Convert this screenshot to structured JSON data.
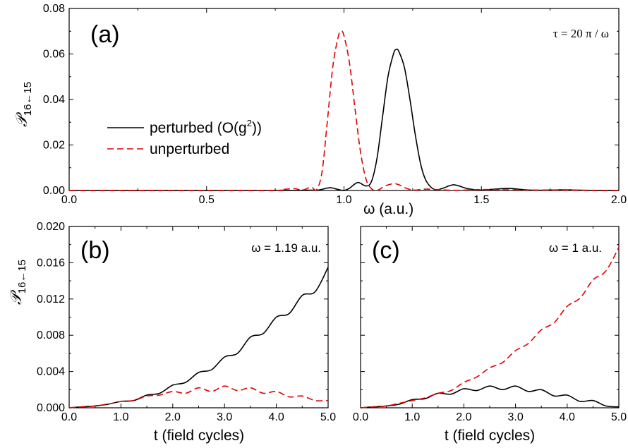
{
  "colors": {
    "perturbed": "#000000",
    "unperturbed": "#e00000"
  },
  "legend": {
    "perturbed": "perturbed (O(g",
    "perturbed_sup": "2",
    "perturbed_end": "))",
    "unperturbed": "unperturbed"
  },
  "chart_data": [
    {
      "panel": "(a)",
      "type": "line",
      "annotation": "τ = 20 π / ω",
      "xlabel": "ω (a.u.)",
      "ylabel": "𝒫",
      "ylabel_sub": "16←15",
      "xlim": [
        0.0,
        2.0
      ],
      "ylim": [
        0.0,
        0.08
      ],
      "xticks": [
        "0.0",
        "0.5",
        "1.0",
        "1.5",
        "2.0"
      ],
      "yticks": [
        "0.00",
        "0.02",
        "0.04",
        "0.06",
        "0.08"
      ],
      "legend_position": "center-left",
      "series": [
        {
          "name": "perturbed (O(g²))",
          "style": "solid",
          "x": [
            0.0,
            0.8,
            0.85,
            0.9,
            0.92,
            0.95,
            0.98,
            1.0,
            1.02,
            1.05,
            1.08,
            1.1,
            1.12,
            1.14,
            1.16,
            1.18,
            1.19,
            1.2,
            1.22,
            1.24,
            1.26,
            1.28,
            1.3,
            1.33,
            1.36,
            1.4,
            1.45,
            1.5,
            1.55,
            1.6,
            1.65,
            1.7,
            1.8,
            1.9,
            2.0
          ],
          "y": [
            0.0,
            0.0,
            0.0002,
            0.0001,
            0.0005,
            0.0012,
            0.0004,
            0.0,
            0.001,
            0.0035,
            0.002,
            0.004,
            0.014,
            0.032,
            0.05,
            0.06,
            0.062,
            0.061,
            0.054,
            0.04,
            0.024,
            0.011,
            0.004,
            0.0004,
            0.001,
            0.0025,
            0.0008,
            0.0002,
            0.0006,
            0.0009,
            0.0004,
            0.0001,
            0.0003,
            0.0,
            0.0
          ]
        },
        {
          "name": "unperturbed",
          "style": "dashed",
          "x": [
            0.0,
            0.7,
            0.78,
            0.82,
            0.85,
            0.88,
            0.9,
            0.92,
            0.94,
            0.96,
            0.98,
            0.99,
            1.0,
            1.02,
            1.04,
            1.06,
            1.08,
            1.1,
            1.12,
            1.15,
            1.18,
            1.2,
            1.23,
            1.26,
            1.3,
            1.4,
            1.5,
            1.6,
            1.7,
            1.8,
            2.0
          ],
          "y": [
            0.0,
            0.0,
            0.0005,
            0.0008,
            0.0002,
            0.0015,
            0.0004,
            0.008,
            0.031,
            0.055,
            0.068,
            0.07,
            0.068,
            0.056,
            0.036,
            0.017,
            0.005,
            0.0008,
            0.0,
            0.002,
            0.003,
            0.0025,
            0.0008,
            0.0002,
            0.0006,
            0.0001,
            0.0004,
            0.0003,
            0.0002,
            0.0002,
            0.0
          ]
        }
      ]
    },
    {
      "panel": "(b)",
      "type": "line",
      "annotation": "ω = 1.19 a.u.",
      "xlabel": "t (field cycles)",
      "ylabel": "𝒫",
      "ylabel_sub": "16←15",
      "xlim": [
        0.0,
        5.0
      ],
      "ylim": [
        0.0,
        0.02
      ],
      "xticks": [
        "0.0",
        "1.0",
        "2.0",
        "3.0",
        "4.0",
        "5.0"
      ],
      "yticks": [
        "0.000",
        "0.004",
        "0.008",
        "0.012",
        "0.016",
        "0.020"
      ],
      "series": [
        {
          "name": "perturbed (O(g²))",
          "style": "solid",
          "x": [
            0.0,
            0.25,
            0.5,
            0.75,
            1.0,
            1.25,
            1.5,
            1.75,
            2.0,
            2.25,
            2.5,
            2.75,
            3.0,
            3.25,
            3.5,
            3.75,
            4.0,
            4.25,
            4.5,
            4.75,
            5.0
          ],
          "y": [
            0.0,
            0.0001,
            0.0002,
            0.0004,
            0.0007,
            0.0008,
            0.0014,
            0.0016,
            0.0025,
            0.0028,
            0.0039,
            0.0042,
            0.0056,
            0.006,
            0.0078,
            0.0082,
            0.01,
            0.0104,
            0.0124,
            0.0128,
            0.0155
          ]
        },
        {
          "name": "unperturbed",
          "style": "dashed",
          "x": [
            0.0,
            0.25,
            0.5,
            0.75,
            1.0,
            1.25,
            1.5,
            1.75,
            2.0,
            2.25,
            2.5,
            2.75,
            3.0,
            3.25,
            3.5,
            3.75,
            4.0,
            4.25,
            4.5,
            4.75,
            5.0
          ],
          "y": [
            0.0,
            0.0001,
            0.0002,
            0.0004,
            0.0007,
            0.0008,
            0.0013,
            0.0014,
            0.0018,
            0.0016,
            0.0022,
            0.0018,
            0.0024,
            0.0019,
            0.0022,
            0.0016,
            0.0018,
            0.0012,
            0.0013,
            0.0008,
            0.0008
          ]
        }
      ]
    },
    {
      "panel": "(c)",
      "type": "line",
      "annotation": "ω = 1 a.u.",
      "xlabel": "t (field cycles)",
      "xlim": [
        0.0,
        5.0
      ],
      "ylim": [
        0.0,
        0.02
      ],
      "xticks": [
        "0.0",
        "1.0",
        "2.0",
        "3.0",
        "4.0",
        "5.0"
      ],
      "series": [
        {
          "name": "perturbed (O(g²))",
          "style": "solid",
          "x": [
            0.0,
            0.25,
            0.5,
            0.75,
            1.0,
            1.25,
            1.5,
            1.75,
            2.0,
            2.25,
            2.5,
            2.75,
            3.0,
            3.25,
            3.5,
            3.75,
            4.0,
            4.25,
            4.5,
            4.75,
            5.0
          ],
          "y": [
            0.0,
            0.0001,
            0.0002,
            0.0004,
            0.0009,
            0.001,
            0.0016,
            0.0015,
            0.0021,
            0.0019,
            0.0024,
            0.002,
            0.0024,
            0.0018,
            0.002,
            0.0013,
            0.0014,
            0.0007,
            0.0008,
            0.0002,
            0.0001
          ]
        },
        {
          "name": "unperturbed",
          "style": "dashed",
          "x": [
            0.0,
            0.25,
            0.5,
            0.75,
            1.0,
            1.25,
            1.5,
            1.75,
            2.0,
            2.25,
            2.5,
            2.75,
            3.0,
            3.25,
            3.5,
            3.75,
            4.0,
            4.25,
            4.5,
            4.75,
            5.0
          ],
          "y": [
            0.0,
            0.0001,
            0.0002,
            0.0005,
            0.0008,
            0.0011,
            0.0016,
            0.0019,
            0.0028,
            0.0034,
            0.0044,
            0.005,
            0.0063,
            0.0071,
            0.0086,
            0.0094,
            0.0112,
            0.0121,
            0.0141,
            0.0151,
            0.0177
          ]
        }
      ]
    }
  ]
}
